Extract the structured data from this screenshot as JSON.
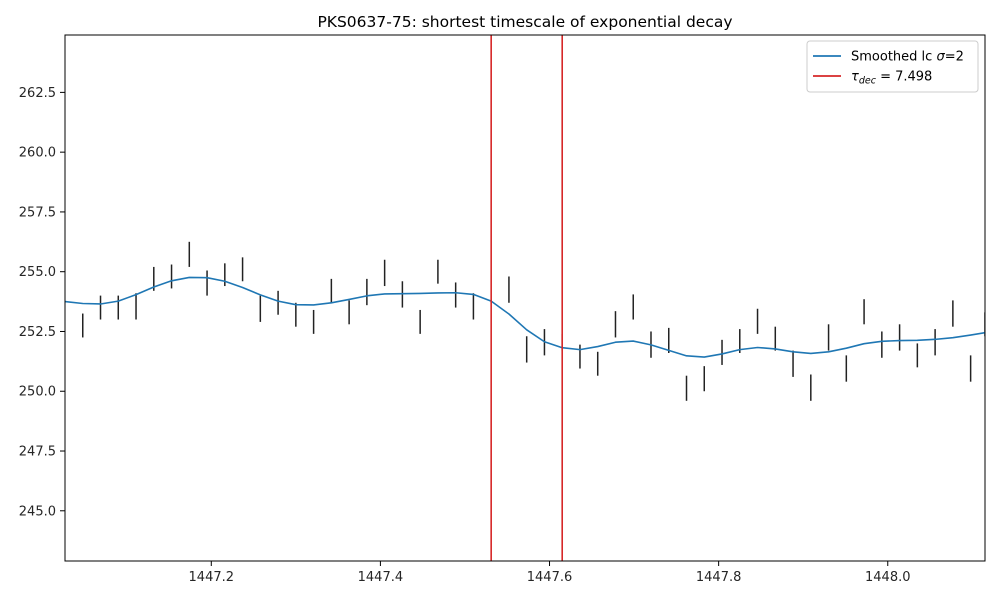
{
  "chart_data": {
    "type": "line",
    "title": "PKS0637-75: shortest timescale of exponential decay",
    "xlabel": "",
    "ylabel": "",
    "xlim": [
      1447.027,
      1448.115
    ],
    "ylim": [
      242.9,
      264.9
    ],
    "x_ticks": [
      1447.2,
      1447.4,
      1447.6,
      1447.8,
      1448.0
    ],
    "x_tick_labels": [
      "1447.2",
      "1447.4",
      "1447.6",
      "1447.8",
      "1448.0"
    ],
    "y_ticks": [
      245.0,
      247.5,
      250.0,
      252.5,
      255.0,
      257.5,
      260.0,
      262.5
    ],
    "y_tick_labels": [
      "245.0",
      "247.5",
      "250.0",
      "252.5",
      "255.0",
      "257.5",
      "260.0",
      "262.5"
    ],
    "grid": false,
    "legend_position": "top-right",
    "series": [
      {
        "name": "Smoothed lc σ=2",
        "legend_label": {
          "prefix": "Smoothed lc ",
          "symbol": "σ",
          "suffix": "=2"
        },
        "color": "#1f77b4",
        "x": [
          1447.027,
          1447.048,
          1447.069,
          1447.09,
          1447.111,
          1447.132,
          1447.153,
          1447.174,
          1447.195,
          1447.216,
          1447.237,
          1447.258,
          1447.279,
          1447.3,
          1447.321,
          1447.342,
          1447.363,
          1447.384,
          1447.405,
          1447.426,
          1447.447,
          1447.468,
          1447.489,
          1447.51,
          1447.531,
          1447.552,
          1447.573,
          1447.594,
          1447.615,
          1447.636,
          1447.657,
          1447.678,
          1447.699,
          1447.72,
          1447.741,
          1447.762,
          1447.783,
          1447.804,
          1447.825,
          1447.846,
          1447.867,
          1447.888,
          1447.909,
          1447.93,
          1447.951,
          1447.972,
          1447.993,
          1448.014,
          1448.035,
          1448.056,
          1448.077,
          1448.098,
          1448.115
        ],
        "y": [
          253.75,
          253.67,
          253.65,
          253.77,
          254.04,
          254.36,
          254.62,
          254.76,
          254.75,
          254.6,
          254.34,
          254.03,
          253.77,
          253.62,
          253.61,
          253.7,
          253.84,
          253.99,
          254.07,
          254.08,
          254.09,
          254.11,
          254.12,
          254.05,
          253.77,
          253.23,
          252.57,
          252.07,
          251.82,
          251.74,
          251.87,
          252.05,
          252.1,
          251.94,
          251.71,
          251.48,
          251.43,
          251.56,
          251.74,
          251.83,
          251.77,
          251.65,
          251.58,
          251.65,
          251.8,
          251.99,
          252.09,
          252.12,
          252.13,
          252.17,
          252.24,
          252.35,
          252.45
        ]
      },
      {
        "name": "τdec = 7.498",
        "legend_label": {
          "symbol": "τ",
          "subscript": "dec",
          "suffix": " = 7.498"
        },
        "type": "vlines",
        "color": "#d62728",
        "x": [
          1447.531,
          1447.615
        ]
      }
    ],
    "error_bars": {
      "color": "#222222",
      "x": [
        1447.048,
        1447.069,
        1447.09,
        1447.111,
        1447.132,
        1447.153,
        1447.174,
        1447.195,
        1447.216,
        1447.237,
        1447.258,
        1447.279,
        1447.3,
        1447.321,
        1447.342,
        1447.363,
        1447.384,
        1447.405,
        1447.426,
        1447.447,
        1447.468,
        1447.489,
        1447.51,
        1447.552,
        1447.573,
        1447.594,
        1447.615,
        1447.636,
        1447.657,
        1447.678,
        1447.699,
        1447.72,
        1447.741,
        1447.762,
        1447.783,
        1447.804,
        1447.825,
        1447.846,
        1447.867,
        1447.888,
        1447.909,
        1447.93,
        1447.951,
        1447.972,
        1447.993,
        1448.014,
        1448.035,
        1448.056,
        1448.077,
        1448.098,
        1448.115
      ],
      "low": [
        252.25,
        253.0,
        253.0,
        253.0,
        254.2,
        254.3,
        255.2,
        254.0,
        254.4,
        254.6,
        252.9,
        253.2,
        252.7,
        252.4,
        253.7,
        252.8,
        253.6,
        254.4,
        253.5,
        252.4,
        254.5,
        253.5,
        253.0,
        253.7,
        251.2,
        251.5,
        251.7,
        250.95,
        250.65,
        252.25,
        253.0,
        251.4,
        251.6,
        249.6,
        250.0,
        251.1,
        251.6,
        252.4,
        251.7,
        250.6,
        249.6,
        251.7,
        250.4,
        252.8,
        251.4,
        251.7,
        251.0,
        251.5,
        252.7,
        250.4,
        252.3
      ],
      "high": [
        253.25,
        254.0,
        254.0,
        254.1,
        255.2,
        255.3,
        256.25,
        255.05,
        255.35,
        255.6,
        254.0,
        254.2,
        253.7,
        253.4,
        254.7,
        253.8,
        254.7,
        255.5,
        254.6,
        253.4,
        255.5,
        254.55,
        254.1,
        254.8,
        252.3,
        252.6,
        252.4,
        251.95,
        251.65,
        253.35,
        254.05,
        252.5,
        252.65,
        250.65,
        251.05,
        252.15,
        252.6,
        253.45,
        252.7,
        251.7,
        250.7,
        252.8,
        251.5,
        253.85,
        252.5,
        252.8,
        252.0,
        252.6,
        253.8,
        251.5,
        253.3
      ]
    }
  }
}
